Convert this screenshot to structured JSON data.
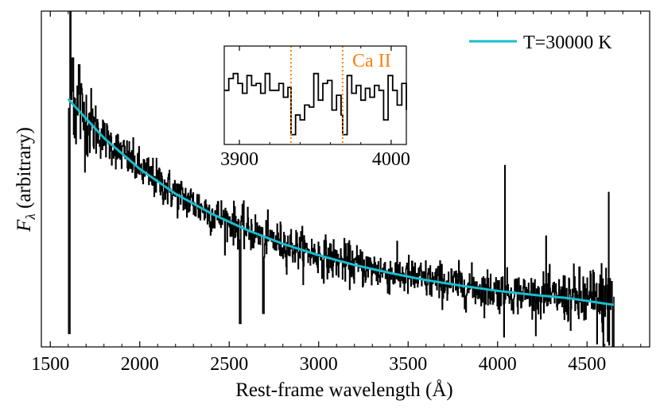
{
  "chart_data": [
    {
      "type": "line",
      "role": "main",
      "title": "",
      "xlabel": "Rest-frame wavelength (Å)",
      "ylabel_main": "F",
      "ylabel_sub": "λ",
      "ylabel_rest": " (arbitrary)",
      "xlim": [
        1450,
        4850
      ],
      "ylim": [
        0,
        1
      ],
      "xticks": [
        1500,
        2000,
        2500,
        3000,
        3500,
        4000,
        4500
      ],
      "xtick_labels": [
        "1500",
        "2000",
        "2500",
        "3000",
        "3500",
        "4000",
        "4500"
      ],
      "yticks_shown": false,
      "legend": {
        "location": "top-right",
        "entries": [
          "T=30000 K"
        ]
      },
      "series": [
        {
          "name": "observed spectrum",
          "color": "#000000",
          "x_range": [
            1600,
            4650
          ],
          "description_values": {
            "peak_x": [
              1610,
              1615,
              1625,
              1660,
              4040,
              4620
            ],
            "notable_spikes_y": [
              1.0,
              0.98,
              0.85,
              0.85,
              0.54,
              0.46
            ],
            "notable_dips_x": [
              1605,
              2560,
              2690,
              4040,
              4640
            ],
            "notable_dips_y": [
              0.04,
              0.07,
              0.1,
              0.03,
              0.0
            ]
          }
        },
        {
          "name": "T=30000 K",
          "color": "#17becf",
          "x": [
            1600,
            1800,
            2000,
            2200,
            2400,
            2600,
            2800,
            3000,
            3200,
            3400,
            3600,
            3800,
            4000,
            4200,
            4400,
            4650
          ],
          "values": [
            0.738,
            0.622,
            0.53,
            0.456,
            0.397,
            0.348,
            0.307,
            0.273,
            0.244,
            0.22,
            0.199,
            0.182,
            0.167,
            0.155,
            0.145,
            0.125
          ]
        }
      ]
    },
    {
      "type": "line",
      "role": "inset",
      "xlim": [
        3890,
        4010
      ],
      "ylim": [
        0,
        1
      ],
      "xticks": [
        3900,
        4000
      ],
      "xtick_labels": [
        "3900",
        "4000"
      ],
      "annotation": "Ca II",
      "annotation_color": "#ff7f0e",
      "vlines": [
        3934,
        3968
      ],
      "series": [
        {
          "name": "inset spectrum",
          "color": "#000000",
          "x": [
            3890,
            3893,
            3896,
            3899,
            3902,
            3905,
            3908,
            3911,
            3914,
            3917,
            3920,
            3923,
            3926,
            3929,
            3932,
            3934,
            3937,
            3940,
            3943,
            3946,
            3949,
            3952,
            3955,
            3958,
            3961,
            3964,
            3967,
            3968,
            3971,
            3974,
            3977,
            3980,
            3983,
            3986,
            3989,
            3992,
            3995,
            3998,
            4001,
            4004,
            4007,
            4010
          ],
          "values": [
            0.55,
            0.67,
            0.72,
            0.62,
            0.52,
            0.7,
            0.6,
            0.62,
            0.52,
            0.72,
            0.55,
            0.55,
            0.62,
            0.48,
            0.58,
            0.1,
            0.3,
            0.25,
            0.4,
            0.38,
            0.72,
            0.45,
            0.62,
            0.65,
            0.35,
            0.5,
            0.3,
            0.1,
            0.7,
            0.52,
            0.6,
            0.45,
            0.57,
            0.48,
            0.6,
            0.55,
            0.25,
            0.7,
            0.55,
            0.4,
            0.62,
            0.35
          ]
        }
      ]
    }
  ]
}
